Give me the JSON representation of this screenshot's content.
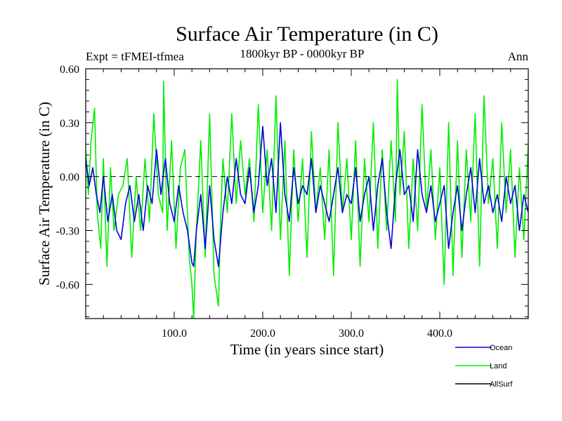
{
  "chart_data": {
    "type": "line",
    "title": "Surface Air Temperature (in C)",
    "subtitle_left": "Expt = tFMEI-tfmea",
    "subtitle_center": "1800kyr BP - 0000kyr BP",
    "subtitle_right": "Ann",
    "xlabel": "Time (in years since start)",
    "ylabel": "Surface Air Temperature (in C)",
    "xlim": [
      0,
      500
    ],
    "ylim": [
      -0.79,
      0.6
    ],
    "xticks_major": [
      100,
      200,
      300,
      400
    ],
    "xtick_labels": [
      "100.0",
      "200.0",
      "300.0",
      "400.0"
    ],
    "yticks_major": [
      -0.6,
      -0.3,
      0.0,
      0.3,
      0.6
    ],
    "ytick_labels": [
      "-0.60",
      "-0.30",
      "0.00",
      "0.30",
      "0.60"
    ],
    "reference_line": 0.0,
    "legend": [
      "Ocean",
      "Land",
      "AllSurf"
    ],
    "series": [
      {
        "name": "Land",
        "color": "#00ee00",
        "x": [
          0,
          3,
          6,
          10,
          13,
          17,
          20,
          24,
          28,
          32,
          37,
          42,
          47,
          52,
          57,
          62,
          67,
          72,
          77,
          82,
          87,
          88,
          92,
          97,
          102,
          107,
          112,
          117,
          120,
          122,
          125,
          130,
          135,
          140,
          145,
          150,
          152,
          155,
          160,
          165,
          170,
          175,
          180,
          185,
          190,
          195,
          200,
          205,
          210,
          215,
          220,
          225,
          230,
          235,
          240,
          245,
          250,
          255,
          260,
          265,
          270,
          275,
          280,
          285,
          290,
          295,
          300,
          305,
          310,
          315,
          320,
          325,
          330,
          335,
          340,
          345,
          350,
          352,
          355,
          360,
          365,
          370,
          375,
          380,
          385,
          390,
          395,
          400,
          405,
          410,
          415,
          420,
          425,
          430,
          435,
          440,
          445,
          450,
          455,
          460,
          465,
          470,
          475,
          480,
          485,
          490,
          495,
          500
        ],
        "y": [
          0.15,
          -0.1,
          0.2,
          0.38,
          -0.2,
          -0.4,
          0.1,
          -0.5,
          0.05,
          -0.3,
          -0.1,
          -0.05,
          0.1,
          -0.45,
          0.0,
          -0.3,
          0.1,
          -0.25,
          0.35,
          -0.1,
          -0.2,
          0.53,
          -0.3,
          0.2,
          -0.4,
          0.05,
          0.15,
          -0.45,
          -0.6,
          -0.79,
          -0.3,
          0.2,
          -0.45,
          0.35,
          -0.55,
          -0.72,
          -0.3,
          0.1,
          -0.2,
          0.35,
          -0.15,
          0.2,
          -0.1,
          0.1,
          -0.25,
          0.4,
          -0.2,
          0.15,
          -0.3,
          0.45,
          -0.35,
          0.2,
          -0.55,
          0.15,
          -0.25,
          0.1,
          -0.45,
          0.25,
          -0.2,
          0.05,
          -0.35,
          0.15,
          -0.55,
          0.3,
          -0.2,
          0.1,
          -0.35,
          0.2,
          -0.5,
          0.1,
          -0.25,
          0.3,
          -0.4,
          0.15,
          -0.3,
          0.2,
          -0.25,
          0.54,
          -0.1,
          0.25,
          -0.4,
          0.1,
          -0.3,
          0.4,
          -0.2,
          0.15,
          -0.35,
          0.05,
          -0.6,
          0.3,
          -0.55,
          0.2,
          -0.45,
          0.15,
          -0.25,
          0.35,
          -0.5,
          0.45,
          -0.15,
          0.1,
          -0.4,
          0.3,
          -0.2,
          0.15,
          -0.45,
          0.05,
          -0.35,
          0.18
        ]
      },
      {
        "name": "Ocean",
        "color": "#0000dd",
        "x": [
          0,
          4,
          8,
          12,
          16,
          20,
          25,
          30,
          35,
          40,
          45,
          50,
          55,
          60,
          65,
          70,
          75,
          80,
          85,
          90,
          95,
          100,
          105,
          110,
          115,
          120,
          122,
          125,
          130,
          135,
          140,
          145,
          150,
          155,
          160,
          165,
          170,
          175,
          180,
          185,
          190,
          195,
          200,
          205,
          210,
          215,
          220,
          225,
          230,
          235,
          240,
          245,
          250,
          255,
          260,
          265,
          270,
          275,
          280,
          285,
          290,
          295,
          300,
          305,
          310,
          315,
          320,
          325,
          330,
          335,
          340,
          345,
          350,
          355,
          360,
          365,
          370,
          375,
          380,
          385,
          390,
          395,
          400,
          405,
          410,
          415,
          420,
          425,
          430,
          435,
          440,
          445,
          450,
          455,
          460,
          465,
          470,
          475,
          480,
          485,
          490,
          495,
          500
        ],
        "y": [
          0.1,
          -0.05,
          0.05,
          -0.1,
          -0.2,
          0.0,
          -0.25,
          -0.1,
          -0.3,
          -0.35,
          -0.15,
          -0.05,
          -0.25,
          -0.1,
          -0.3,
          -0.05,
          -0.15,
          0.15,
          -0.1,
          0.1,
          -0.15,
          -0.25,
          -0.05,
          -0.2,
          -0.3,
          -0.48,
          -0.5,
          -0.3,
          -0.1,
          -0.4,
          -0.05,
          -0.35,
          -0.5,
          -0.2,
          0.0,
          -0.15,
          0.1,
          -0.1,
          -0.15,
          0.05,
          -0.2,
          -0.05,
          0.28,
          -0.05,
          0.1,
          -0.2,
          0.3,
          -0.1,
          -0.25,
          0.05,
          -0.15,
          -0.05,
          -0.1,
          0.1,
          -0.2,
          -0.05,
          -0.15,
          -0.25,
          -0.1,
          0.05,
          -0.2,
          -0.1,
          -0.15,
          0.05,
          -0.25,
          -0.1,
          0.0,
          -0.3,
          -0.05,
          0.1,
          -0.2,
          -0.4,
          -0.05,
          0.15,
          -0.1,
          -0.05,
          -0.25,
          0.15,
          -0.1,
          -0.2,
          -0.05,
          -0.25,
          -0.15,
          -0.05,
          -0.4,
          -0.2,
          -0.05,
          -0.3,
          -0.1,
          0.05,
          -0.2,
          0.1,
          -0.15,
          -0.05,
          -0.2,
          -0.1,
          -0.25,
          0.0,
          -0.15,
          -0.05,
          -0.3,
          -0.1,
          -0.2
        ]
      },
      {
        "name": "AllSurf",
        "color": "#000000",
        "x": [],
        "y": []
      }
    ]
  }
}
